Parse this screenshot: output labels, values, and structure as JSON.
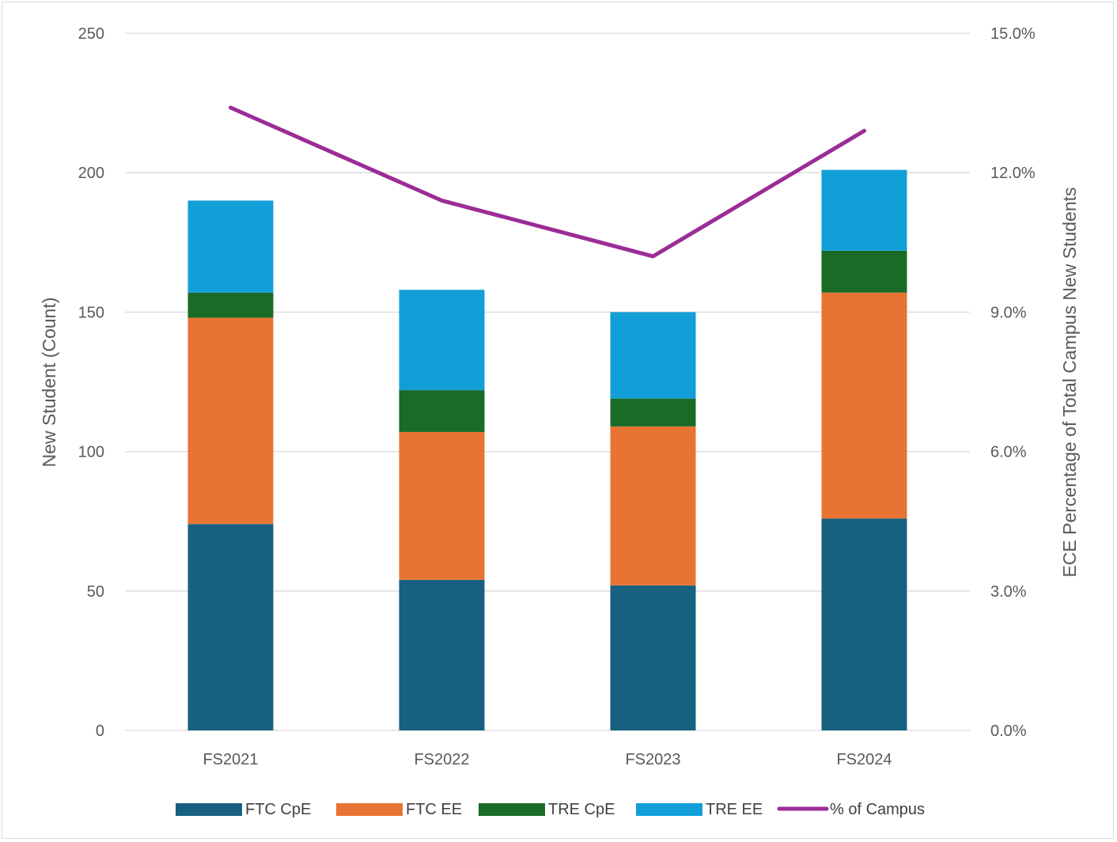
{
  "chart_data": {
    "type": "bar",
    "stacked": true,
    "title": "",
    "categories": [
      "FS2021",
      "FS2022",
      "FS2023",
      "FS2024"
    ],
    "series": [
      {
        "name": "FTC CpE",
        "values": [
          74,
          54,
          52,
          76
        ],
        "color": "#17607f"
      },
      {
        "name": "FTC EE",
        "values": [
          74,
          53,
          57,
          81
        ],
        "color": "#e87433"
      },
      {
        "name": "TRE CpE",
        "values": [
          9,
          15,
          10,
          15
        ],
        "color": "#1a6b26"
      },
      {
        "name": "TRE EE",
        "values": [
          33,
          36,
          31,
          29
        ],
        "color": "#129fd8"
      }
    ],
    "line_series": {
      "name": "% of Campus",
      "axis": "secondary",
      "values": [
        13.4,
        11.4,
        10.2,
        12.9
      ],
      "color": "#9b2c96"
    },
    "ylabel": "New Student (Count)",
    "y2label": "ECE Percentage of Total Campus New Students",
    "ylim": [
      0,
      250
    ],
    "y2lim": [
      0,
      15
    ],
    "yticks": [
      "0",
      "50",
      "100",
      "150",
      "200",
      "250"
    ],
    "y2ticks": [
      "0.0%",
      "3.0%",
      "6.0%",
      "9.0%",
      "12.0%",
      "15.0%"
    ],
    "grid": true,
    "legend_position": "bottom"
  }
}
